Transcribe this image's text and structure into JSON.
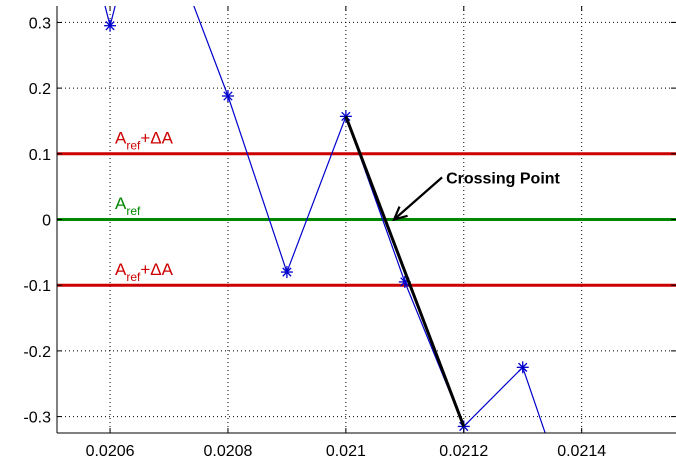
{
  "chart_data": {
    "type": "line",
    "title": "",
    "xlabel": "",
    "ylabel": "",
    "xlim": [
      0.02051,
      0.02156
    ],
    "ylim": [
      -0.325,
      0.325
    ],
    "grid": true,
    "x_ticks": [
      0.0206,
      0.0208,
      0.021,
      0.0212,
      0.0214
    ],
    "x_tick_labels": [
      "0.0206",
      "0.0208",
      "0.021",
      "0.0212",
      "0.0214"
    ],
    "y_ticks": [
      0.3,
      0.2,
      0.1,
      0,
      -0.1,
      -0.2,
      -0.3
    ],
    "y_tick_labels": [
      "0.3",
      "0.2",
      "0.1",
      "0",
      "-0.1",
      "-0.2",
      "-0.3"
    ],
    "series": [
      {
        "color": "#0000cc",
        "marker": "asterisk",
        "x": [
          0.0206,
          0.0208,
          0.0209,
          0.021,
          0.0211,
          0.0212,
          0.0213
        ],
        "y": [
          0.295,
          0.188,
          -0.08,
          0.157,
          -0.095,
          -0.315,
          -0.225
        ],
        "line_continues_beyond": {
          "left": [
            [
              0.02059,
              0.33
            ],
            [
              0.02061,
              0.33
            ]
          ],
          "right": [
            [
              0.02134,
              -0.33
            ]
          ],
          "through_top_between": [
            [
              0.02074,
              0.33
            ],
            [
              0.02075,
              0.33
            ]
          ]
        }
      }
    ],
    "reference_lines": [
      {
        "y": 0.1,
        "color": "#cc0000",
        "label_main": "A",
        "label_sub": "ref",
        "label_suffix": "+ΔA",
        "label_y": 0.125
      },
      {
        "y": 0,
        "color": "#008800",
        "label_main": "A",
        "label_sub": "ref",
        "label_suffix": "",
        "label_y": 0.025
      },
      {
        "y": -0.1,
        "color": "#cc0000",
        "label_main": "A",
        "label_sub": "ref",
        "label_suffix": "+ΔA",
        "label_y": -0.075
      }
    ],
    "interpolation_line": {
      "x": [
        0.021,
        0.0212
      ],
      "y": [
        0.157,
        -0.315
      ],
      "color": "#000000"
    },
    "annotation": {
      "text": "Crossing Point",
      "arrow_to": [
        0.021075,
        0.0
      ],
      "text_at": [
        0.02117,
        0.055
      ]
    }
  }
}
